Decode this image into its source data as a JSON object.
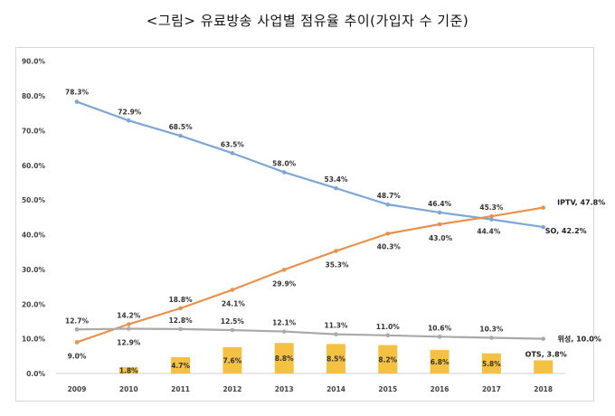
{
  "title": "<그림> 유료방송 사업별 점유율 추이(가입자 수 기준)",
  "chart_data": {
    "type": "line",
    "x": [
      "2009",
      "2010",
      "2011",
      "2012",
      "2013",
      "2014",
      "2015",
      "2016",
      "2017",
      "2018"
    ],
    "y_ticks": [
      "0.0%",
      "10.0%",
      "20.0%",
      "30.0%",
      "40.0%",
      "50.0%",
      "60.0%",
      "70.0%",
      "80.0%",
      "90.0%"
    ],
    "ylim": [
      0,
      90
    ],
    "series": [
      {
        "key": "so",
        "type": "line",
        "color": "#7EA6D6",
        "values": [
          78.3,
          72.9,
          68.5,
          63.5,
          58.0,
          53.4,
          48.7,
          46.4,
          44.4,
          42.2
        ],
        "labels": [
          "78.3%",
          "72.9%",
          "68.5%",
          "63.5%",
          "58.0%",
          "53.4%",
          "48.7%",
          "46.4%",
          "44.4%",
          "SO, 42.2%"
        ]
      },
      {
        "key": "iptv",
        "type": "line",
        "color": "#E8914D",
        "values": [
          9.0,
          14.2,
          18.8,
          24.1,
          29.9,
          35.3,
          40.3,
          43.0,
          45.3,
          47.8
        ],
        "labels": [
          "9.0%",
          "14.2%",
          "18.8%",
          "24.1%",
          "29.9%",
          "35.3%",
          "40.3%",
          "43.0%",
          "45.3%",
          "IPTV, 47.8%"
        ]
      },
      {
        "key": "sat",
        "type": "line",
        "color": "#A9A9A9",
        "values": [
          12.7,
          12.9,
          12.8,
          12.5,
          12.1,
          11.3,
          11.0,
          10.6,
          10.3,
          10.0
        ],
        "labels": [
          "12.7%",
          "12.9%",
          "12.8%",
          "12.5%",
          "12.1%",
          "11.3%",
          "11.0%",
          "10.6%",
          "10.3%",
          "위성, 10.0%"
        ]
      },
      {
        "key": "ots",
        "type": "bar",
        "color": "#F5C143",
        "values": [
          null,
          1.8,
          4.7,
          7.6,
          8.8,
          8.5,
          8.2,
          6.8,
          5.8,
          3.8
        ],
        "labels": [
          "",
          "1.8%",
          "4.7%",
          "7.6%",
          "8.8%",
          "8.5%",
          "8.2%",
          "6.8%",
          "5.8%",
          "OTS, 3.8%"
        ]
      }
    ]
  }
}
